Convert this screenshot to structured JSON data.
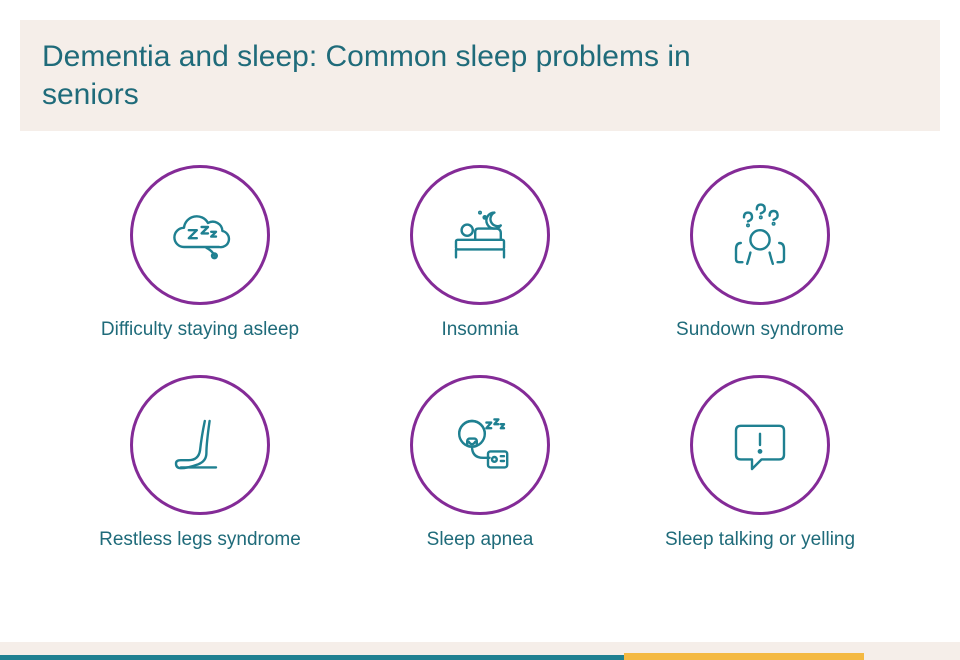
{
  "title": "Dementia and sleep: Common sleep problems in seniors",
  "colors": {
    "header_bg": "#f5eee9",
    "title_text": "#1f6b7a",
    "circle_border": "#842b97",
    "icon_stroke": "#1f8091",
    "label_text": "#1f6b7a",
    "bottom_band_bg": "#f5eee9",
    "bottom_teal": "#1f8091",
    "bottom_yellow": "#f4b942"
  },
  "layout": {
    "teal_bar_width_pct": 65,
    "yellow_bar_left_pct": 65,
    "yellow_bar_width_pct": 25
  },
  "items": [
    {
      "label": "Difficulty staying asleep",
      "icon": "zzz-cloud-icon"
    },
    {
      "label": "Insomnia",
      "icon": "bed-moon-icon"
    },
    {
      "label": "Sundown syndrome",
      "icon": "confused-person-icon"
    },
    {
      "label": "Restless legs syndrome",
      "icon": "foot-icon"
    },
    {
      "label": "Sleep apnea",
      "icon": "cpap-icon"
    },
    {
      "label": "Sleep talking or yelling",
      "icon": "speech-exclaim-icon"
    }
  ]
}
